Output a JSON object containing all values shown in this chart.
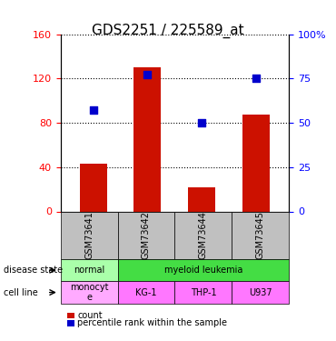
{
  "title": "GDS2251 / 225589_at",
  "samples": [
    "GSM73641",
    "GSM73642",
    "GSM73644",
    "GSM73645"
  ],
  "counts": [
    43,
    130,
    22,
    87
  ],
  "percentiles": [
    57,
    77,
    50,
    75
  ],
  "left_ylim": [
    0,
    160
  ],
  "right_ylim": [
    0,
    100
  ],
  "left_yticks": [
    0,
    40,
    80,
    120,
    160
  ],
  "right_yticks": [
    0,
    25,
    50,
    75,
    100
  ],
  "right_yticklabels": [
    "0",
    "25",
    "50",
    "75",
    "100%"
  ],
  "bar_color": "#cc1100",
  "scatter_color": "#0000cc",
  "sample_col_color": "#c0c0c0",
  "legend_count_color": "#cc1100",
  "legend_pct_color": "#0000cc",
  "label_disease": "disease state",
  "label_cell": "cell line",
  "disease_groups": [
    [
      0,
      1,
      "normal",
      "#aaffaa"
    ],
    [
      1,
      4,
      "myeloid leukemia",
      "#44dd44"
    ]
  ],
  "cell_line_labels": [
    "monocyt\ne",
    "KG-1",
    "THP-1",
    "U937"
  ],
  "cell_line_colors": [
    "#ffaaff",
    "#ff77ff",
    "#ff77ff",
    "#ff77ff"
  ]
}
